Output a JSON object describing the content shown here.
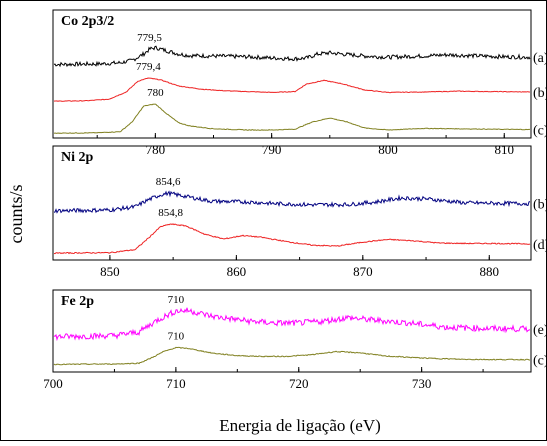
{
  "figure": {
    "ylabel": "counts/s",
    "xlabel": "Energia de ligação (eV)"
  },
  "chart_data": [
    {
      "type": "line",
      "title": "Co 2p3/2",
      "xlim": [
        771.2,
        812.3
      ],
      "x_ticks": [
        "780",
        "790",
        "800",
        "810"
      ],
      "x_tick_values": [
        780,
        790,
        800,
        810
      ],
      "grid": false,
      "series": [
        {
          "name": "(a)",
          "color": "#000000",
          "points": [
            [
              771.2,
              0.04
            ],
            [
              775,
              0.05
            ],
            [
              777,
              0.08
            ],
            [
              778,
              0.14
            ],
            [
              779,
              0.3
            ],
            [
              779.5,
              0.42
            ],
            [
              780,
              0.46
            ],
            [
              781,
              0.38
            ],
            [
              782,
              0.3
            ],
            [
              783,
              0.26
            ],
            [
              785,
              0.25
            ],
            [
              788,
              0.23
            ],
            [
              790,
              0.2
            ],
            [
              792,
              0.18
            ],
            [
              793,
              0.2
            ],
            [
              794,
              0.3
            ],
            [
              795,
              0.33
            ],
            [
              796,
              0.3
            ],
            [
              798,
              0.25
            ],
            [
              800,
              0.22
            ],
            [
              803,
              0.25
            ],
            [
              805,
              0.28
            ],
            [
              808,
              0.25
            ],
            [
              810,
              0.23
            ],
            [
              812.3,
              0.22
            ]
          ],
          "peak_label": "779,5",
          "peak_x": 779.5,
          "noise": 0.05
        },
        {
          "name": "(b)",
          "color": "#ee2222",
          "points": [
            [
              771.2,
              0.02
            ],
            [
              774,
              0.03
            ],
            [
              776,
              0.07
            ],
            [
              777.5,
              0.25
            ],
            [
              778.5,
              0.52
            ],
            [
              779.4,
              0.6
            ],
            [
              780.5,
              0.55
            ],
            [
              782,
              0.4
            ],
            [
              784,
              0.32
            ],
            [
              786,
              0.28
            ],
            [
              788,
              0.26
            ],
            [
              790,
              0.24
            ],
            [
              792,
              0.26
            ],
            [
              793,
              0.45
            ],
            [
              794.5,
              0.54
            ],
            [
              796,
              0.46
            ],
            [
              798,
              0.3
            ],
            [
              800,
              0.24
            ],
            [
              803,
              0.25
            ],
            [
              806,
              0.27
            ],
            [
              809,
              0.26
            ],
            [
              812.3,
              0.25
            ]
          ],
          "peak_label": "779,4",
          "peak_x": 779.4,
          "noise": 0.008
        },
        {
          "name": "(c)",
          "color": "#808020",
          "points": [
            [
              771.2,
              0.02
            ],
            [
              775,
              0.03
            ],
            [
              777,
              0.06
            ],
            [
              778,
              0.3
            ],
            [
              779,
              0.7
            ],
            [
              780,
              0.75
            ],
            [
              781,
              0.5
            ],
            [
              782,
              0.28
            ],
            [
              783,
              0.2
            ],
            [
              785,
              0.13
            ],
            [
              788,
              0.1
            ],
            [
              790,
              0.1
            ],
            [
              792,
              0.12
            ],
            [
              793.5,
              0.3
            ],
            [
              795,
              0.4
            ],
            [
              796.5,
              0.3
            ],
            [
              798,
              0.15
            ],
            [
              800,
              0.1
            ],
            [
              803,
              0.14
            ],
            [
              806,
              0.13
            ],
            [
              809,
              0.12
            ],
            [
              812.3,
              0.11
            ]
          ],
          "peak_label": "780",
          "peak_x": 780,
          "noise": 0.008
        }
      ]
    },
    {
      "type": "line",
      "title": "Ni 2p",
      "xlim": [
        845.5,
        883.3
      ],
      "x_ticks": [
        "850",
        "860",
        "870",
        "880"
      ],
      "x_tick_values": [
        850,
        860,
        870,
        880
      ],
      "grid": false,
      "series": [
        {
          "name": "(b)",
          "color": "#000080",
          "points": [
            [
              845.5,
              0.08
            ],
            [
              850,
              0.1
            ],
            [
              852,
              0.18
            ],
            [
              853,
              0.35
            ],
            [
              854,
              0.48
            ],
            [
              854.6,
              0.52
            ],
            [
              856,
              0.44
            ],
            [
              858,
              0.32
            ],
            [
              861,
              0.3
            ],
            [
              863,
              0.26
            ],
            [
              866,
              0.23
            ],
            [
              869,
              0.24
            ],
            [
              871,
              0.3
            ],
            [
              873,
              0.4
            ],
            [
              875,
              0.38
            ],
            [
              878,
              0.28
            ],
            [
              880,
              0.27
            ],
            [
              883.3,
              0.26
            ]
          ],
          "peak_label": "854,6",
          "peak_x": 854.6,
          "noise": 0.05
        },
        {
          "name": "(d)",
          "color": "#ee2222",
          "points": [
            [
              845.5,
              0.02
            ],
            [
              850,
              0.03
            ],
            [
              852,
              0.1
            ],
            [
              853,
              0.35
            ],
            [
              854,
              0.62
            ],
            [
              854.8,
              0.68
            ],
            [
              856,
              0.64
            ],
            [
              857.5,
              0.45
            ],
            [
              859,
              0.34
            ],
            [
              860.5,
              0.42
            ],
            [
              862,
              0.38
            ],
            [
              864,
              0.28
            ],
            [
              866,
              0.2
            ],
            [
              868,
              0.18
            ],
            [
              870,
              0.27
            ],
            [
              872,
              0.33
            ],
            [
              874,
              0.3
            ],
            [
              876,
              0.25
            ],
            [
              878,
              0.24
            ],
            [
              880,
              0.24
            ],
            [
              883.3,
              0.23
            ]
          ],
          "peak_label": "854,8",
          "peak_x": 854.8,
          "noise": 0.012
        }
      ]
    },
    {
      "type": "line",
      "title": "Fe 2p",
      "xlim": [
        700,
        738.9
      ],
      "x_ticks": [
        "700",
        "710",
        "720",
        "730"
      ],
      "x_tick_values": [
        700,
        710,
        720,
        730
      ],
      "grid": false,
      "series": [
        {
          "name": "(e)",
          "color": "#ff00ff",
          "points": [
            [
              700,
              0.32
            ],
            [
              705,
              0.34
            ],
            [
              707,
              0.4
            ],
            [
              708.5,
              0.6
            ],
            [
              710,
              0.75
            ],
            [
              711,
              0.76
            ],
            [
              713,
              0.66
            ],
            [
              716,
              0.58
            ],
            [
              718,
              0.55
            ],
            [
              720,
              0.55
            ],
            [
              722,
              0.58
            ],
            [
              724,
              0.64
            ],
            [
              726,
              0.6
            ],
            [
              729,
              0.55
            ],
            [
              732,
              0.48
            ],
            [
              735,
              0.46
            ],
            [
              738.9,
              0.45
            ]
          ],
          "peak_label": "710",
          "peak_x": 710,
          "noise": 0.05
        },
        {
          "name": "(c)",
          "color": "#808020",
          "points": [
            [
              700,
              0.04
            ],
            [
              705,
              0.05
            ],
            [
              707,
              0.07
            ],
            [
              708,
              0.2
            ],
            [
              709,
              0.36
            ],
            [
              710,
              0.46
            ],
            [
              711,
              0.44
            ],
            [
              713,
              0.32
            ],
            [
              715,
              0.26
            ],
            [
              717,
              0.24
            ],
            [
              719,
              0.24
            ],
            [
              721,
              0.28
            ],
            [
              723,
              0.36
            ],
            [
              725,
              0.33
            ],
            [
              727,
              0.25
            ],
            [
              730,
              0.2
            ],
            [
              733,
              0.17
            ],
            [
              736,
              0.16
            ],
            [
              738.9,
              0.16
            ]
          ],
          "peak_label": "710",
          "peak_x": 710,
          "noise": 0.012
        }
      ]
    }
  ]
}
